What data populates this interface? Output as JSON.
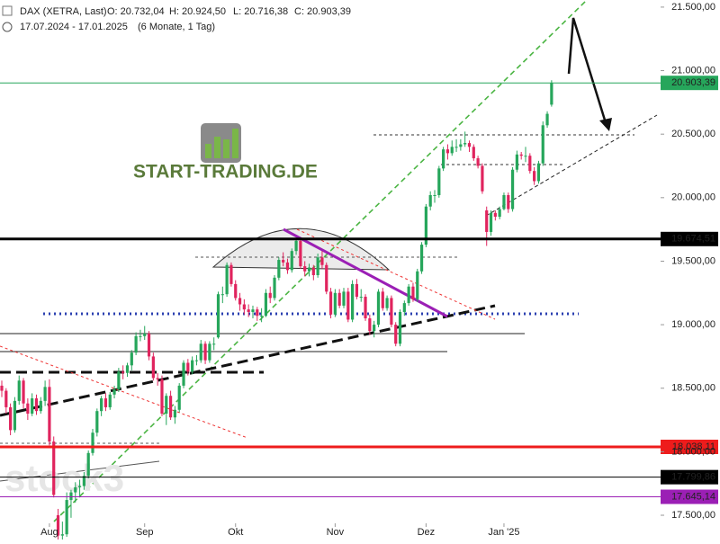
{
  "header": {
    "symbol": "DAX (XETRA, Last)",
    "open": "O: 20.732,04",
    "high": "H: 20.924,50",
    "low": "L: 20.716,38",
    "close": "C: 20.903,39",
    "range": "17.07.2024 - 17.01.2025",
    "interval": "(6 Monate, 1 Tag)"
  },
  "logo": "START-TRADING.DE",
  "watermark": "stock3",
  "chart_data": {
    "type": "candlestick",
    "up_color": "#26a65b",
    "down_color": "#e0245e",
    "ylim": [
      17309,
      21556
    ],
    "yticks": [
      {
        "value": 17500,
        "label": "17.500,00"
      },
      {
        "value": 18000,
        "label": "18.000,00"
      },
      {
        "value": 18500,
        "label": "18.500,00"
      },
      {
        "value": 19000,
        "label": "19.000,00"
      },
      {
        "value": 19500,
        "label": "19.500,00"
      },
      {
        "value": 20000,
        "label": "20.000,00"
      },
      {
        "value": 20500,
        "label": "20.500,00"
      },
      {
        "value": 21000,
        "label": "21.000,00"
      },
      {
        "value": 21500,
        "label": "21.500,00"
      }
    ],
    "xticks": [
      {
        "value": 11,
        "label": "Aug"
      },
      {
        "value": 33,
        "label": "Sep"
      },
      {
        "value": 54,
        "label": "Okt"
      },
      {
        "value": 77,
        "label": "Nov"
      },
      {
        "value": 98,
        "label": "Dez"
      },
      {
        "value": 116,
        "label": "Jan '25"
      }
    ],
    "levels": [
      {
        "value": 20903.39,
        "label": "20.903,39",
        "color": "#26a65b"
      },
      {
        "value": 19674.51,
        "label": "19.674,51",
        "color": "#000000"
      },
      {
        "value": 18038.11,
        "label": "18.038,11",
        "color": "#ee1c1c"
      },
      {
        "value": 17799.86,
        "label": "17.799,86",
        "color": "#000000"
      },
      {
        "value": 17645.14,
        "label": "17.645,14",
        "color": "#9b1fb5"
      }
    ],
    "candles": [
      [
        18520,
        18560,
        18430,
        18480
      ],
      [
        18480,
        18500,
        18300,
        18350
      ],
      [
        18350,
        18380,
        18130,
        18170
      ],
      [
        18170,
        18430,
        18150,
        18400
      ],
      [
        18400,
        18600,
        18370,
        18560
      ],
      [
        18560,
        18580,
        18340,
        18380
      ],
      [
        18380,
        18420,
        18250,
        18300
      ],
      [
        18300,
        18460,
        18280,
        18420
      ],
      [
        18420,
        18450,
        18290,
        18320
      ],
      [
        18320,
        18430,
        18300,
        18400
      ],
      [
        18400,
        18560,
        18360,
        18510
      ],
      [
        18510,
        18570,
        18050,
        18080
      ],
      [
        18080,
        18120,
        17640,
        17660
      ],
      [
        17500,
        17550,
        17200,
        17340
      ],
      [
        17340,
        17450,
        17280,
        17350
      ],
      [
        17350,
        17680,
        17330,
        17620
      ],
      [
        17620,
        17700,
        17480,
        17680
      ],
      [
        17680,
        17760,
        17600,
        17720
      ],
      [
        17720,
        17780,
        17640,
        17730
      ],
      [
        17730,
        17840,
        17700,
        17810
      ],
      [
        17810,
        18010,
        17790,
        17990
      ],
      [
        17990,
        18180,
        17970,
        18150
      ],
      [
        18150,
        18340,
        18120,
        18320
      ],
      [
        18320,
        18440,
        18280,
        18420
      ],
      [
        18420,
        18460,
        18320,
        18350
      ],
      [
        18350,
        18470,
        18330,
        18450
      ],
      [
        18450,
        18520,
        18420,
        18490
      ],
      [
        18490,
        18660,
        18470,
        18630
      ],
      [
        18630,
        18680,
        18570,
        18620
      ],
      [
        18620,
        18700,
        18590,
        18680
      ],
      [
        18680,
        18800,
        18640,
        18780
      ],
      [
        18780,
        18940,
        18760,
        18910
      ],
      [
        18910,
        18960,
        18870,
        18910
      ],
      [
        18910,
        18990,
        18880,
        18930
      ],
      [
        18930,
        18950,
        18720,
        18750
      ],
      [
        18750,
        18780,
        18560,
        18580
      ],
      [
        18580,
        18620,
        18520,
        18570
      ],
      [
        18570,
        18600,
        18280,
        18300
      ],
      [
        18300,
        18460,
        18210,
        18440
      ],
      [
        18440,
        18480,
        18250,
        18270
      ],
      [
        18270,
        18360,
        18220,
        18330
      ],
      [
        18330,
        18540,
        18310,
        18520
      ],
      [
        18520,
        18720,
        18500,
        18700
      ],
      [
        18700,
        18730,
        18600,
        18630
      ],
      [
        18630,
        18750,
        18610,
        18720
      ],
      [
        18720,
        18760,
        18680,
        18720
      ],
      [
        18720,
        18880,
        18700,
        18850
      ],
      [
        18850,
        18870,
        18690,
        18720
      ],
      [
        18720,
        18870,
        18700,
        18850
      ],
      [
        18850,
        18900,
        18800,
        18850
      ],
      [
        18900,
        19260,
        18890,
        19240
      ],
      [
        19240,
        19300,
        19170,
        19240
      ],
      [
        19240,
        19490,
        19220,
        19470
      ],
      [
        19470,
        19490,
        19300,
        19320
      ],
      [
        19320,
        19350,
        19190,
        19210
      ],
      [
        19210,
        19250,
        19110,
        19160
      ],
      [
        19160,
        19200,
        19080,
        19120
      ],
      [
        19120,
        19160,
        19060,
        19100
      ],
      [
        19100,
        19150,
        19050,
        19120
      ],
      [
        19120,
        19140,
        19030,
        19070
      ],
      [
        19070,
        19130,
        19020,
        19070
      ],
      [
        19070,
        19280,
        19060,
        19250
      ],
      [
        19250,
        19300,
        19170,
        19210
      ],
      [
        19210,
        19390,
        19190,
        19370
      ],
      [
        19370,
        19530,
        19350,
        19510
      ],
      [
        19510,
        19570,
        19460,
        19490
      ],
      [
        19490,
        19520,
        19400,
        19430
      ],
      [
        19430,
        19600,
        19410,
        19580
      ],
      [
        19580,
        19680,
        19550,
        19660
      ],
      [
        19660,
        19670,
        19440,
        19460
      ],
      [
        19460,
        19500,
        19380,
        19420
      ],
      [
        19420,
        19480,
        19380,
        19450
      ],
      [
        19450,
        19470,
        19350,
        19390
      ],
      [
        19390,
        19560,
        19370,
        19530
      ],
      [
        19530,
        19580,
        19440,
        19470
      ],
      [
        19470,
        19490,
        19240,
        19260
      ],
      [
        19260,
        19290,
        19050,
        19080
      ],
      [
        19080,
        19280,
        19060,
        19250
      ],
      [
        19250,
        19280,
        19130,
        19150
      ],
      [
        19150,
        19290,
        19130,
        19260
      ],
      [
        19260,
        19290,
        19020,
        19040
      ],
      [
        19040,
        19350,
        19020,
        19320
      ],
      [
        19320,
        19360,
        19200,
        19220
      ],
      [
        19220,
        19280,
        19180,
        19220
      ],
      [
        19220,
        19240,
        19030,
        19050
      ],
      [
        19050,
        19080,
        18920,
        18950
      ],
      [
        18950,
        19030,
        18900,
        19000
      ],
      [
        19000,
        19280,
        18980,
        19260
      ],
      [
        19260,
        19290,
        19110,
        19130
      ],
      [
        19130,
        19230,
        19110,
        19210
      ],
      [
        19210,
        19230,
        18980,
        19000
      ],
      [
        19000,
        19020,
        18830,
        18850
      ],
      [
        18850,
        19120,
        18830,
        19100
      ],
      [
        19100,
        19190,
        19070,
        19170
      ],
      [
        19170,
        19320,
        19150,
        19300
      ],
      [
        19300,
        19330,
        19180,
        19200
      ],
      [
        19200,
        19440,
        19180,
        19420
      ],
      [
        19420,
        19650,
        19400,
        19630
      ],
      [
        19630,
        19950,
        19610,
        19930
      ],
      [
        19930,
        20050,
        19900,
        20020
      ],
      [
        20020,
        20060,
        19960,
        20020
      ],
      [
        20020,
        20250,
        20000,
        20230
      ],
      [
        20230,
        20400,
        20210,
        20380
      ],
      [
        20380,
        20420,
        20300,
        20350
      ],
      [
        20350,
        20450,
        20330,
        20400
      ],
      [
        20400,
        20460,
        20360,
        20400
      ],
      [
        20400,
        20460,
        20370,
        20420
      ],
      [
        20420,
        20520,
        20400,
        20430
      ],
      [
        20430,
        20450,
        20360,
        20400
      ],
      [
        20400,
        20420,
        20290,
        20310
      ],
      [
        20310,
        20330,
        20230,
        20250
      ],
      [
        20250,
        20270,
        20030,
        20050
      ],
      [
        19900,
        19930,
        19620,
        19730
      ],
      [
        19730,
        19900,
        19700,
        19880
      ],
      [
        19880,
        19900,
        19820,
        19850
      ],
      [
        19850,
        19930,
        19830,
        19910
      ],
      [
        19910,
        20040,
        19900,
        20020
      ],
      [
        20020,
        20040,
        19880,
        19910
      ],
      [
        19910,
        20240,
        19890,
        20220
      ],
      [
        20220,
        20370,
        20200,
        20340
      ],
      [
        20340,
        20360,
        20300,
        20330
      ],
      [
        20330,
        20400,
        20280,
        20330
      ],
      [
        20330,
        20350,
        20190,
        20210
      ],
      [
        20210,
        20240,
        20100,
        20130
      ],
      [
        20130,
        20290,
        20110,
        20270
      ],
      [
        20270,
        20600,
        20250,
        20570
      ],
      [
        20570,
        20680,
        20550,
        20660
      ],
      [
        20732.04,
        20924.5,
        20716.38,
        20903.39
      ]
    ]
  }
}
